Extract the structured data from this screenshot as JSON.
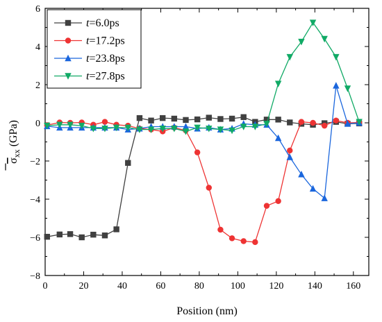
{
  "chart_data": {
    "type": "line",
    "title": "",
    "xlabel": "Position (nm)",
    "ylabel": {
      "symbol": "σ",
      "subscript": "xx",
      "unit": " (GPa)"
    },
    "xlim": [
      0,
      168
    ],
    "ylim": [
      -8,
      6
    ],
    "xticks": [
      0,
      20,
      40,
      60,
      80,
      100,
      120,
      140,
      160
    ],
    "yticks": [
      -8,
      -6,
      -4,
      -2,
      0,
      2,
      4,
      6
    ],
    "grid": false,
    "legend_position": "top-left",
    "series": [
      {
        "label_var": "t",
        "label_rest": "=6.0ps",
        "color": "#404040",
        "marker": "square",
        "x": [
          1,
          7.5,
          13,
          19,
          25,
          31,
          37,
          43,
          49,
          55,
          61,
          67,
          73,
          79,
          85,
          91,
          97,
          103,
          109,
          115,
          121,
          127,
          133,
          139,
          145,
          151,
          157,
          163
        ],
        "y": [
          -5.97,
          -5.85,
          -5.83,
          -6.0,
          -5.86,
          -5.9,
          -5.58,
          -2.1,
          0.25,
          0.12,
          0.25,
          0.22,
          0.15,
          0.18,
          0.27,
          0.2,
          0.22,
          0.3,
          0.05,
          0.17,
          0.17,
          0.02,
          -0.05,
          -0.1,
          -0.02,
          0.05,
          -0.05,
          -0.03
        ]
      },
      {
        "label_var": "t",
        "label_rest": "=17.2ps",
        "color": "#ee3333",
        "marker": "circle",
        "x": [
          1,
          7.5,
          13,
          19,
          25,
          31,
          37,
          43,
          49,
          55,
          61,
          67,
          73,
          79,
          85,
          91,
          97,
          103,
          109,
          115,
          121,
          127,
          133,
          139,
          145,
          151,
          157,
          163
        ],
        "y": [
          -0.12,
          0.02,
          0.0,
          0.02,
          -0.1,
          0.05,
          -0.1,
          -0.15,
          -0.3,
          -0.35,
          -0.45,
          -0.25,
          -0.4,
          -1.55,
          -3.4,
          -5.6,
          -6.05,
          -6.2,
          -6.25,
          -4.35,
          -4.1,
          -1.45,
          0.05,
          0.0,
          -0.15,
          0.12,
          0.0,
          0.02
        ]
      },
      {
        "label_var": "t",
        "label_rest": "=23.8ps",
        "color": "#1a66dd",
        "marker": "triangle-up",
        "x": [
          1,
          7.5,
          13,
          19,
          25,
          31,
          37,
          43,
          49,
          55,
          61,
          67,
          73,
          79,
          85,
          91,
          97,
          103,
          109,
          115,
          121,
          127,
          133,
          139,
          145,
          151,
          157,
          163
        ],
        "y": [
          -0.18,
          -0.25,
          -0.25,
          -0.25,
          -0.25,
          -0.25,
          -0.25,
          -0.35,
          -0.3,
          -0.2,
          -0.2,
          -0.2,
          -0.2,
          -0.3,
          -0.25,
          -0.35,
          -0.3,
          -0.05,
          -0.1,
          -0.1,
          -0.8,
          -1.8,
          -2.7,
          -3.45,
          -3.95,
          1.95,
          -0.05,
          0.0
        ]
      },
      {
        "label_var": "t",
        "label_rest": "=27.8ps",
        "color": "#11aa66",
        "marker": "triangle-down",
        "x": [
          1,
          7.5,
          13,
          19,
          25,
          31,
          37,
          43,
          49,
          55,
          61,
          67,
          73,
          79,
          85,
          91,
          97,
          103,
          109,
          115,
          121,
          127,
          133,
          139,
          145,
          151,
          157,
          163
        ],
        "y": [
          -0.15,
          -0.1,
          -0.1,
          -0.15,
          -0.3,
          -0.3,
          -0.25,
          -0.25,
          -0.35,
          -0.35,
          -0.3,
          -0.3,
          -0.45,
          -0.25,
          -0.3,
          -0.35,
          -0.4,
          -0.2,
          -0.2,
          -0.05,
          2.05,
          3.45,
          4.25,
          5.25,
          4.4,
          3.45,
          1.8,
          0.05
        ]
      }
    ]
  }
}
